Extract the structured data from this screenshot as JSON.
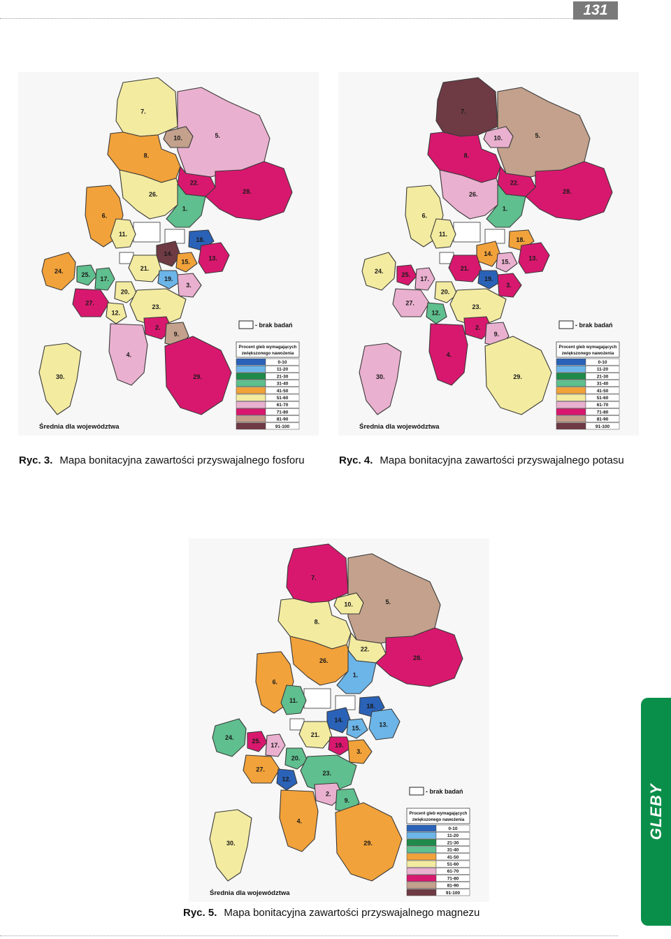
{
  "page_number": "131",
  "side_tab": "GLEBY",
  "legend_title": [
    "Procent gleb wymagających",
    "zwiększonego nawożenia"
  ],
  "legend_no_data": "- brak badań",
  "legend_footer": "Średnia dla województwa",
  "legend_classes": [
    {
      "label": "0-10",
      "color": "#2a62b8"
    },
    {
      "label": "11-20",
      "color": "#6cb5e8"
    },
    {
      "label": "21-30",
      "color": "#1f8a4a"
    },
    {
      "label": "31-40",
      "color": "#5fbf8e"
    },
    {
      "label": "41-50",
      "color": "#f2a23a"
    },
    {
      "label": "51-60",
      "color": "#f3eba0"
    },
    {
      "label": "61-70",
      "color": "#eab0cf"
    },
    {
      "label": "71-80",
      "color": "#d8186e"
    },
    {
      "label": "81-90",
      "color": "#c3a18c"
    },
    {
      "label": "91-100",
      "color": "#6e3a44"
    }
  ],
  "maps": [
    {
      "id": "fosfor",
      "caption_num": "Ryc. 3.",
      "caption_text": "Mapa bonitacyjna zawartości przyswajalnego fosforu",
      "regions": [
        {
          "label": "7.",
          "color": "#f3eba0"
        },
        {
          "label": "5.",
          "color": "#eab0cf"
        },
        {
          "label": "10.",
          "color": "#c3a18c"
        },
        {
          "label": "8.",
          "color": "#f2a23a"
        },
        {
          "label": "22.",
          "color": "#d8186e"
        },
        {
          "label": "28.",
          "color": "#d8186e"
        },
        {
          "label": "26.",
          "color": "#f3eba0"
        },
        {
          "label": "1.",
          "color": "#5fbf8e"
        },
        {
          "label": "6.",
          "color": "#f2a23a"
        },
        {
          "label": "11.",
          "color": "#f3eba0"
        },
        {
          "label": "18.",
          "color": "#2a62b8"
        },
        {
          "label": "14.",
          "color": "#6e3a44"
        },
        {
          "label": "15.",
          "color": "#f2a23a"
        },
        {
          "label": "13.",
          "color": "#d8186e"
        },
        {
          "label": "24.",
          "color": "#f2a23a"
        },
        {
          "label": "25.",
          "color": "#5fbf8e"
        },
        {
          "label": "17.",
          "color": "#5fbf8e"
        },
        {
          "label": "21.",
          "color": "#f3eba0"
        },
        {
          "label": "19.",
          "color": "#6cb5e8"
        },
        {
          "label": "3.",
          "color": "#eab0cf"
        },
        {
          "label": "20.",
          "color": "#f3eba0"
        },
        {
          "label": "27.",
          "color": "#d8186e"
        },
        {
          "label": "23.",
          "color": "#f3eba0"
        },
        {
          "label": "12.",
          "color": "#f3eba0"
        },
        {
          "label": "2.",
          "color": "#d8186e"
        },
        {
          "label": "9.",
          "color": "#c3a18c"
        },
        {
          "label": "4.",
          "color": "#eab0cf"
        },
        {
          "label": "29.",
          "color": "#d8186e"
        },
        {
          "label": "30.",
          "color": "#f3eba0"
        }
      ]
    },
    {
      "id": "potas",
      "caption_num": "Ryc. 4.",
      "caption_text": "Mapa bonitacyjna zawartości przyswajalnego potasu",
      "regions": [
        {
          "label": "7.",
          "color": "#6e3a44"
        },
        {
          "label": "5.",
          "color": "#c3a18c"
        },
        {
          "label": "10.",
          "color": "#eab0cf"
        },
        {
          "label": "8.",
          "color": "#d8186e"
        },
        {
          "label": "22.",
          "color": "#d8186e"
        },
        {
          "label": "28.",
          "color": "#d8186e"
        },
        {
          "label": "26.",
          "color": "#eab0cf"
        },
        {
          "label": "1.",
          "color": "#5fbf8e"
        },
        {
          "label": "6.",
          "color": "#f3eba0"
        },
        {
          "label": "11.",
          "color": "#f3eba0"
        },
        {
          "label": "18.",
          "color": "#f2a23a"
        },
        {
          "label": "14.",
          "color": "#f2a23a"
        },
        {
          "label": "15.",
          "color": "#eab0cf"
        },
        {
          "label": "13.",
          "color": "#d8186e"
        },
        {
          "label": "24.",
          "color": "#f3eba0"
        },
        {
          "label": "25.",
          "color": "#d8186e"
        },
        {
          "label": "17.",
          "color": "#eab0cf"
        },
        {
          "label": "21.",
          "color": "#d8186e"
        },
        {
          "label": "19.",
          "color": "#2a62b8"
        },
        {
          "label": "3.",
          "color": "#d8186e"
        },
        {
          "label": "20.",
          "color": "#f3eba0"
        },
        {
          "label": "27.",
          "color": "#eab0cf"
        },
        {
          "label": "23.",
          "color": "#f3eba0"
        },
        {
          "label": "12.",
          "color": "#5fbf8e"
        },
        {
          "label": "2.",
          "color": "#d8186e"
        },
        {
          "label": "9.",
          "color": "#eab0cf"
        },
        {
          "label": "4.",
          "color": "#d8186e"
        },
        {
          "label": "29.",
          "color": "#f3eba0"
        },
        {
          "label": "30.",
          "color": "#eab0cf"
        }
      ]
    },
    {
      "id": "magnez",
      "caption_num": "Ryc. 5.",
      "caption_text": "Mapa bonitacyjna zawartości przyswajalnego magnezu",
      "regions": [
        {
          "label": "7.",
          "color": "#d8186e"
        },
        {
          "label": "5.",
          "color": "#c3a18c"
        },
        {
          "label": "10.",
          "color": "#f3eba0"
        },
        {
          "label": "8.",
          "color": "#f3eba0"
        },
        {
          "label": "22.",
          "color": "#f3eba0"
        },
        {
          "label": "28.",
          "color": "#d8186e"
        },
        {
          "label": "26.",
          "color": "#f2a23a"
        },
        {
          "label": "1.",
          "color": "#6cb5e8"
        },
        {
          "label": "6.",
          "color": "#f2a23a"
        },
        {
          "label": "11.",
          "color": "#5fbf8e"
        },
        {
          "label": "18.",
          "color": "#2a62b8"
        },
        {
          "label": "14.",
          "color": "#2a62b8"
        },
        {
          "label": "15.",
          "color": "#6cb5e8"
        },
        {
          "label": "13.",
          "color": "#6cb5e8"
        },
        {
          "label": "24.",
          "color": "#5fbf8e"
        },
        {
          "label": "25.",
          "color": "#d8186e"
        },
        {
          "label": "17.",
          "color": "#eab0cf"
        },
        {
          "label": "21.",
          "color": "#f3eba0"
        },
        {
          "label": "19.",
          "color": "#d8186e"
        },
        {
          "label": "3.",
          "color": "#f2a23a"
        },
        {
          "label": "20.",
          "color": "#5fbf8e"
        },
        {
          "label": "27.",
          "color": "#f2a23a"
        },
        {
          "label": "23.",
          "color": "#5fbf8e"
        },
        {
          "label": "12.",
          "color": "#2a62b8"
        },
        {
          "label": "2.",
          "color": "#eab0cf"
        },
        {
          "label": "9.",
          "color": "#5fbf8e"
        },
        {
          "label": "4.",
          "color": "#f2a23a"
        },
        {
          "label": "29.",
          "color": "#f2a23a"
        },
        {
          "label": "30.",
          "color": "#f3eba0"
        }
      ]
    }
  ]
}
